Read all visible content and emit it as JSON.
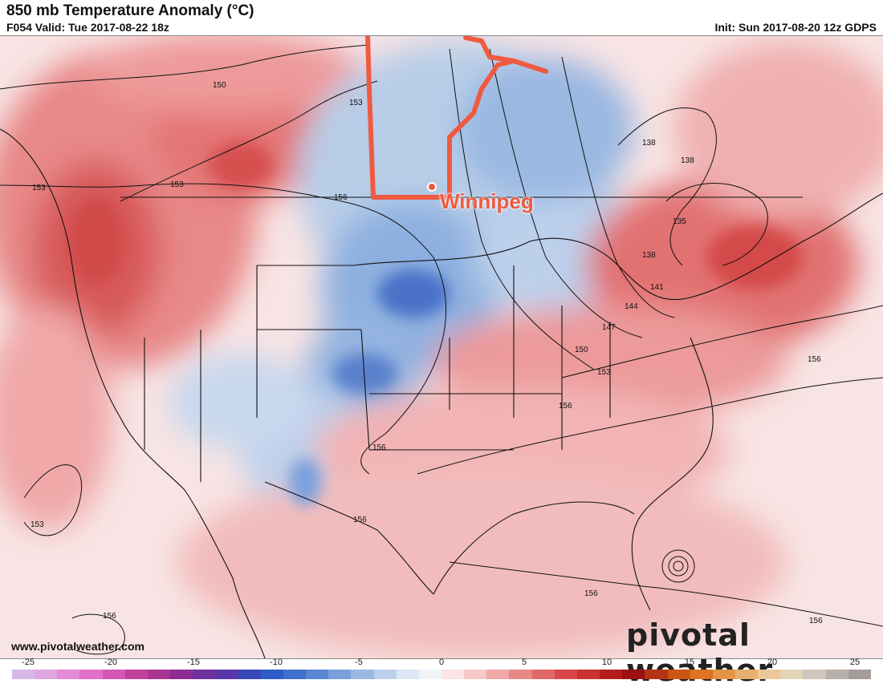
{
  "header": {
    "title": "850 mb Temperature Anomaly (°C)",
    "valid": "F054 Valid: Tue 2017-08-22 18z",
    "init": "Init: Sun 2017-08-20 12z GDPS"
  },
  "map": {
    "callout_label": "Winnipeg",
    "contour_labels": [
      "150",
      "153",
      "153",
      "153",
      "156",
      "138",
      "138",
      "135",
      "138",
      "141",
      "144",
      "147",
      "150",
      "153",
      "156",
      "156",
      "156",
      "156",
      "153",
      "156",
      "156",
      "156"
    ]
  },
  "footer": {
    "site": "www.pivotalweather.com",
    "brand": "pivotal weather"
  },
  "legend": {
    "ticks": [
      "-25",
      "-20",
      "-15",
      "-10",
      "-5",
      "0",
      "5",
      "10",
      "15",
      "20",
      "25"
    ],
    "colors": [
      "#d6b8e8",
      "#e0a6e0",
      "#e48ad6",
      "#e070c8",
      "#d456b4",
      "#c0409c",
      "#a83690",
      "#8c2c94",
      "#70309c",
      "#5a36a8",
      "#3848b8",
      "#2e5cc8",
      "#4070cc",
      "#5a86d4",
      "#7aa0dc",
      "#9ab8e4",
      "#bcd0ec",
      "#dce6f4",
      "#f2f4f8",
      "#fbe4e4",
      "#f6c8c8",
      "#f0a8a8",
      "#e88888",
      "#e06868",
      "#d84848",
      "#cc3030",
      "#b41c1c",
      "#9c1010",
      "#b43414",
      "#cc5414",
      "#dc7424",
      "#e49444",
      "#e8b070",
      "#ecc898",
      "#e4d4b8",
      "#cfc6bc",
      "#b8b0aa",
      "#a49c98"
    ]
  },
  "colors": {
    "warm_anomaly": "#e06868",
    "cold_anomaly": "#5a86d4",
    "callout": "#f05a40"
  }
}
